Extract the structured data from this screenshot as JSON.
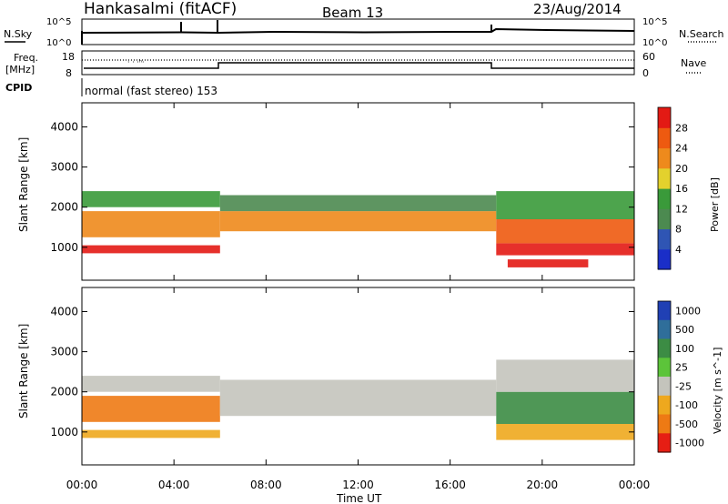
{
  "header": {
    "title": "Hankasalmi (fitACF)",
    "beam": "Beam 13",
    "date": "23/Aug/2014"
  },
  "noise_panel": {
    "left_label": "N.Sky",
    "right_label": "N.Search",
    "left_ticks": [
      "10^5",
      "10^0"
    ],
    "right_ticks": [
      "10^5",
      "10^0"
    ]
  },
  "freq_panel": {
    "left_label_1": "Freq.",
    "left_label_2": "[MHz]",
    "left_ticks": [
      "18",
      "8"
    ],
    "right_label": "Nave",
    "right_ticks": [
      "60",
      "0"
    ]
  },
  "cpid": {
    "label": "CPID",
    "text": "normal (fast stereo) 153"
  },
  "x_axis": {
    "ticks": [
      "00:00",
      "04:00",
      "08:00",
      "12:00",
      "16:00",
      "20:00",
      "00:00"
    ],
    "label": "Time UT"
  },
  "chart_data": [
    {
      "type": "heatmap",
      "name": "power",
      "ylabel": "Slant Range [km]",
      "y_ticks": [
        "1000",
        "2000",
        "3000",
        "4000"
      ],
      "ylim": [
        180,
        4600
      ],
      "xlim": [
        0,
        24
      ],
      "colorbar_label": "Power [dB]",
      "colorbar_ticks": [
        "4",
        "8",
        "12",
        "16",
        "20",
        "24",
        "28"
      ],
      "colorbar_range": [
        0,
        32
      ],
      "colors": [
        "#1a2ec8",
        "#2f55b4",
        "#4c8a50",
        "#3a9a3a",
        "#e3d12d",
        "#ee8a1c",
        "#ee5a10",
        "#e31a14"
      ],
      "bands": [
        {
          "t": [
            0,
            6
          ],
          "r": [
            850,
            1050
          ],
          "level": 30
        },
        {
          "t": [
            0,
            6
          ],
          "r": [
            1250,
            1900
          ],
          "level": 22
        },
        {
          "t": [
            0,
            6
          ],
          "r": [
            2000,
            2400
          ],
          "level": 12
        },
        {
          "t": [
            6,
            18
          ],
          "r": [
            1400,
            1900
          ],
          "level": 23
        },
        {
          "t": [
            6,
            18
          ],
          "r": [
            1900,
            2300
          ],
          "level": 11
        },
        {
          "t": [
            18,
            24
          ],
          "r": [
            800,
            1100
          ],
          "level": 30
        },
        {
          "t": [
            18,
            24
          ],
          "r": [
            1100,
            1700
          ],
          "level": 27
        },
        {
          "t": [
            18,
            24
          ],
          "r": [
            1700,
            2400
          ],
          "level": 14
        },
        {
          "t": [
            18.5,
            22
          ],
          "r": [
            500,
            700
          ],
          "level": 29
        }
      ]
    },
    {
      "type": "heatmap",
      "name": "velocity",
      "ylabel": "Slant Range [km]",
      "y_ticks": [
        "1000",
        "2000",
        "3000",
        "4000"
      ],
      "ylim": [
        180,
        4600
      ],
      "xlim": [
        0,
        24
      ],
      "colorbar_label": "Velocity [m s^-1]",
      "colorbar_ticks": [
        "1000",
        "500",
        "100",
        "25",
        "-25",
        "-100",
        "-500",
        "-1000"
      ],
      "colorbar_bins": [
        "1000",
        "500",
        "100",
        "25",
        "-25",
        "-100",
        "-500",
        "-1000"
      ],
      "colors": [
        "#2040b4",
        "#2f6e9a",
        "#3c8c44",
        "#5cc43a",
        "#c4c4bc",
        "#eea81e",
        "#ee7a14",
        "#e61e14"
      ],
      "bands": [
        {
          "t": [
            0,
            6
          ],
          "r": [
            850,
            1050
          ],
          "level": 5
        },
        {
          "t": [
            0,
            6
          ],
          "r": [
            1250,
            1900
          ],
          "level": 6
        },
        {
          "t": [
            0,
            6
          ],
          "r": [
            2000,
            2400
          ],
          "level": 4
        },
        {
          "t": [
            6,
            18
          ],
          "r": [
            1400,
            2300
          ],
          "level": 4
        },
        {
          "t": [
            18,
            24
          ],
          "r": [
            800,
            1200
          ],
          "level": 5
        },
        {
          "t": [
            18,
            24
          ],
          "r": [
            1200,
            2000
          ],
          "level": 2
        },
        {
          "t": [
            18,
            24
          ],
          "r": [
            2000,
            2800
          ],
          "level": 4
        }
      ]
    }
  ]
}
